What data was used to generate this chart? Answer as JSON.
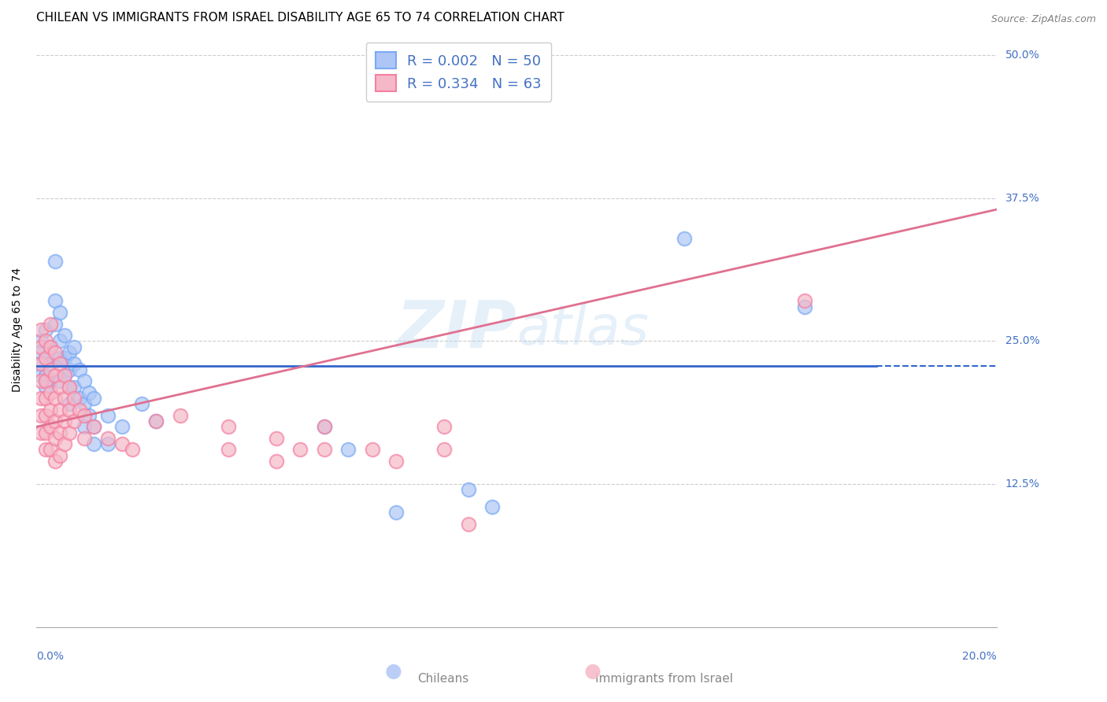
{
  "title": "CHILEAN VS IMMIGRANTS FROM ISRAEL DISABILITY AGE 65 TO 74 CORRELATION CHART",
  "source": "Source: ZipAtlas.com",
  "ylabel": "Disability Age 65 to 74",
  "yticks": [
    0.0,
    0.125,
    0.25,
    0.375,
    0.5
  ],
  "ytick_labels": [
    "",
    "12.5%",
    "25.0%",
    "37.5%",
    "50.0%"
  ],
  "xlim": [
    0.0,
    0.2
  ],
  "ylim": [
    0.0,
    0.52
  ],
  "chilean_color": "#7aaaf5",
  "immigrant_color": "#f57fa0",
  "chilean_fill": "#aec6f5",
  "immigrant_fill": "#f5b8c8",
  "chilean_line_color": "#3366cc",
  "immigrant_line_color": "#e07090",
  "watermark": "ZIPAtlas",
  "chilean_R": 0.002,
  "chilean_N": 50,
  "immigrant_R": 0.334,
  "immigrant_N": 63,
  "chilean_scatter": [
    [
      0.001,
      0.25
    ],
    [
      0.001,
      0.24
    ],
    [
      0.001,
      0.23
    ],
    [
      0.001,
      0.22
    ],
    [
      0.002,
      0.26
    ],
    [
      0.002,
      0.235
    ],
    [
      0.002,
      0.22
    ],
    [
      0.002,
      0.21
    ],
    [
      0.003,
      0.245
    ],
    [
      0.003,
      0.23
    ],
    [
      0.003,
      0.215
    ],
    [
      0.004,
      0.32
    ],
    [
      0.004,
      0.285
    ],
    [
      0.004,
      0.265
    ],
    [
      0.005,
      0.275
    ],
    [
      0.005,
      0.25
    ],
    [
      0.005,
      0.235
    ],
    [
      0.005,
      0.215
    ],
    [
      0.006,
      0.255
    ],
    [
      0.006,
      0.235
    ],
    [
      0.006,
      0.22
    ],
    [
      0.007,
      0.24
    ],
    [
      0.007,
      0.225
    ],
    [
      0.007,
      0.21
    ],
    [
      0.007,
      0.195
    ],
    [
      0.008,
      0.245
    ],
    [
      0.008,
      0.23
    ],
    [
      0.008,
      0.21
    ],
    [
      0.009,
      0.225
    ],
    [
      0.009,
      0.2
    ],
    [
      0.01,
      0.215
    ],
    [
      0.01,
      0.195
    ],
    [
      0.01,
      0.175
    ],
    [
      0.011,
      0.205
    ],
    [
      0.011,
      0.185
    ],
    [
      0.012,
      0.2
    ],
    [
      0.012,
      0.175
    ],
    [
      0.012,
      0.16
    ],
    [
      0.015,
      0.185
    ],
    [
      0.015,
      0.16
    ],
    [
      0.018,
      0.175
    ],
    [
      0.022,
      0.195
    ],
    [
      0.025,
      0.18
    ],
    [
      0.06,
      0.175
    ],
    [
      0.065,
      0.155
    ],
    [
      0.075,
      0.1
    ],
    [
      0.09,
      0.12
    ],
    [
      0.095,
      0.105
    ],
    [
      0.135,
      0.34
    ],
    [
      0.16,
      0.28
    ]
  ],
  "immigrant_scatter": [
    [
      0.001,
      0.26
    ],
    [
      0.001,
      0.245
    ],
    [
      0.001,
      0.23
    ],
    [
      0.001,
      0.215
    ],
    [
      0.001,
      0.2
    ],
    [
      0.001,
      0.185
    ],
    [
      0.001,
      0.17
    ],
    [
      0.002,
      0.25
    ],
    [
      0.002,
      0.235
    ],
    [
      0.002,
      0.215
    ],
    [
      0.002,
      0.2
    ],
    [
      0.002,
      0.185
    ],
    [
      0.002,
      0.17
    ],
    [
      0.002,
      0.155
    ],
    [
      0.003,
      0.265
    ],
    [
      0.003,
      0.245
    ],
    [
      0.003,
      0.225
    ],
    [
      0.003,
      0.205
    ],
    [
      0.003,
      0.19
    ],
    [
      0.003,
      0.175
    ],
    [
      0.003,
      0.155
    ],
    [
      0.004,
      0.24
    ],
    [
      0.004,
      0.22
    ],
    [
      0.004,
      0.2
    ],
    [
      0.004,
      0.18
    ],
    [
      0.004,
      0.165
    ],
    [
      0.004,
      0.145
    ],
    [
      0.005,
      0.23
    ],
    [
      0.005,
      0.21
    ],
    [
      0.005,
      0.19
    ],
    [
      0.005,
      0.17
    ],
    [
      0.005,
      0.15
    ],
    [
      0.006,
      0.22
    ],
    [
      0.006,
      0.2
    ],
    [
      0.006,
      0.18
    ],
    [
      0.006,
      0.16
    ],
    [
      0.007,
      0.21
    ],
    [
      0.007,
      0.19
    ],
    [
      0.007,
      0.17
    ],
    [
      0.008,
      0.2
    ],
    [
      0.008,
      0.18
    ],
    [
      0.009,
      0.19
    ],
    [
      0.01,
      0.185
    ],
    [
      0.01,
      0.165
    ],
    [
      0.012,
      0.175
    ],
    [
      0.015,
      0.165
    ],
    [
      0.018,
      0.16
    ],
    [
      0.02,
      0.155
    ],
    [
      0.025,
      0.18
    ],
    [
      0.03,
      0.185
    ],
    [
      0.04,
      0.175
    ],
    [
      0.04,
      0.155
    ],
    [
      0.05,
      0.165
    ],
    [
      0.05,
      0.145
    ],
    [
      0.055,
      0.155
    ],
    [
      0.06,
      0.175
    ],
    [
      0.06,
      0.155
    ],
    [
      0.07,
      0.155
    ],
    [
      0.075,
      0.145
    ],
    [
      0.085,
      0.175
    ],
    [
      0.085,
      0.155
    ],
    [
      0.09,
      0.09
    ],
    [
      0.16,
      0.285
    ]
  ],
  "background_color": "#ffffff",
  "grid_color": "#cccccc",
  "title_fontsize": 11,
  "axis_label_fontsize": 10,
  "tick_fontsize": 10,
  "legend_fontsize": 13
}
